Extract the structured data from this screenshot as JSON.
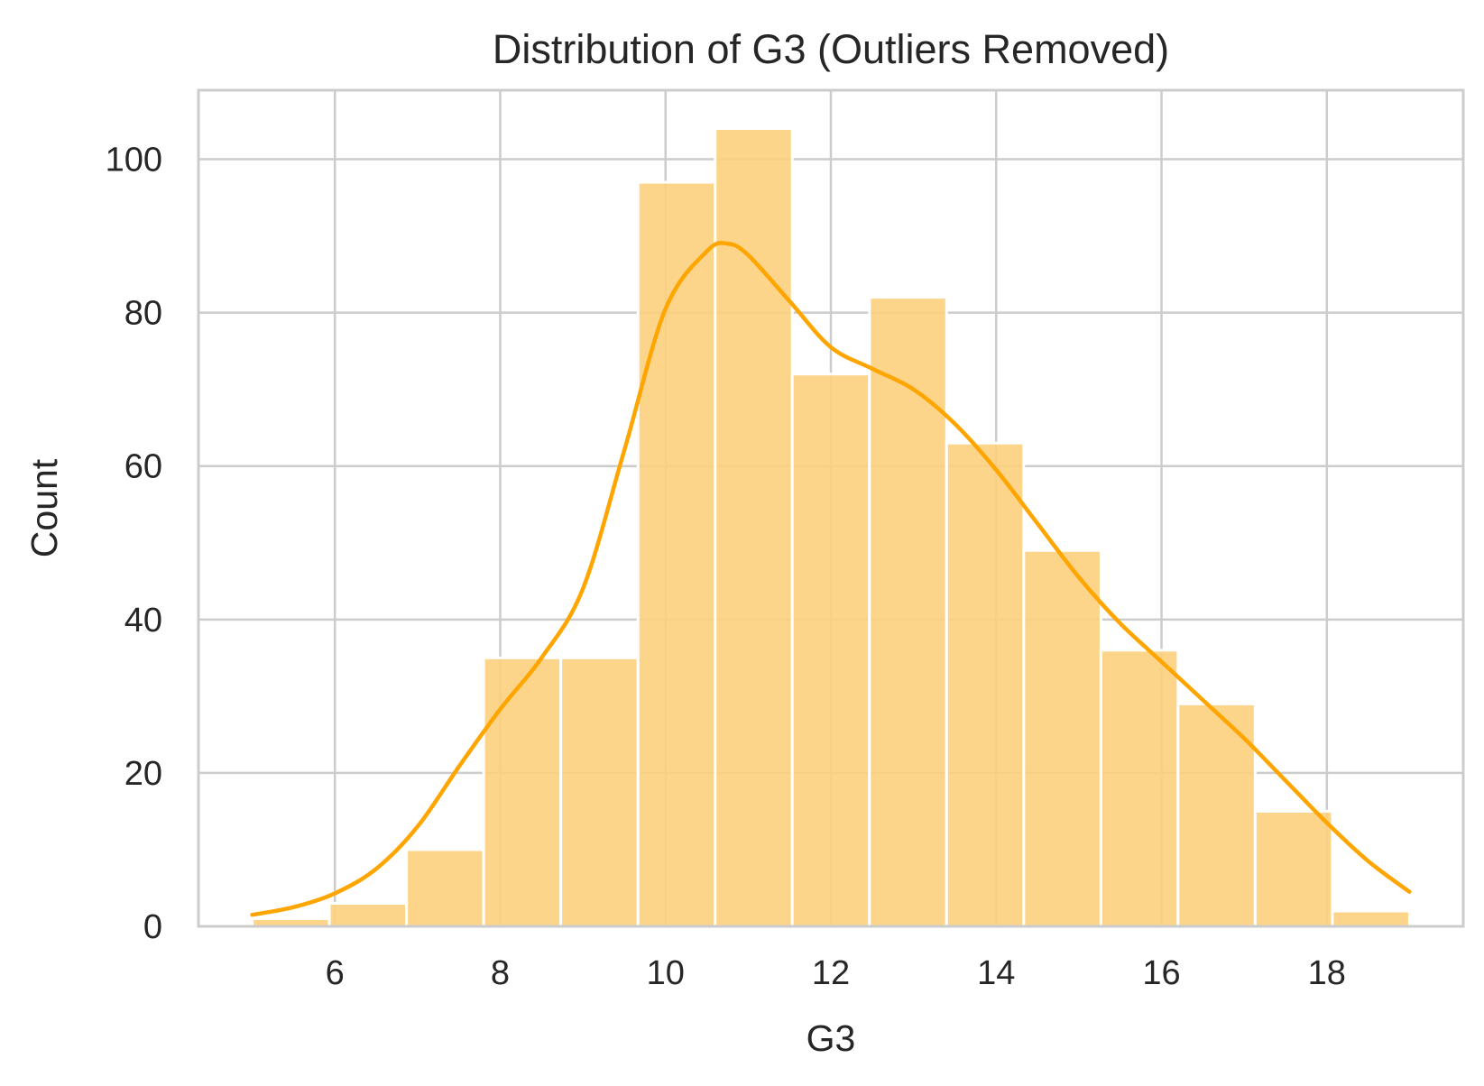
{
  "chart_data": {
    "type": "bar",
    "subtype": "histogram_with_kde",
    "title": "Distribution of G3 (Outliers Removed)",
    "xlabel": "G3",
    "ylabel": "Count",
    "xlim": [
      4.35,
      19.65
    ],
    "ylim": [
      0,
      109
    ],
    "xticks": [
      6,
      8,
      10,
      12,
      14,
      16,
      18
    ],
    "yticks": [
      0,
      20,
      40,
      60,
      80,
      100
    ],
    "grid": true,
    "bin_width": 0.9333,
    "bins": [
      {
        "x0": 5.0,
        "x1": 5.933,
        "count": 1
      },
      {
        "x0": 5.933,
        "x1": 6.867,
        "count": 3
      },
      {
        "x0": 6.867,
        "x1": 7.8,
        "count": 10
      },
      {
        "x0": 7.8,
        "x1": 8.733,
        "count": 35
      },
      {
        "x0": 8.733,
        "x1": 9.667,
        "count": 35
      },
      {
        "x0": 9.667,
        "x1": 10.6,
        "count": 97
      },
      {
        "x0": 10.6,
        "x1": 11.533,
        "count": 104
      },
      {
        "x0": 11.533,
        "x1": 12.467,
        "count": 72
      },
      {
        "x0": 12.467,
        "x1": 13.4,
        "count": 82
      },
      {
        "x0": 13.4,
        "x1": 14.333,
        "count": 63
      },
      {
        "x0": 14.333,
        "x1": 15.267,
        "count": 49
      },
      {
        "x0": 15.267,
        "x1": 16.2,
        "count": 36
      },
      {
        "x0": 16.2,
        "x1": 17.133,
        "count": 29
      },
      {
        "x0": 17.133,
        "x1": 18.067,
        "count": 15
      },
      {
        "x0": 18.067,
        "x1": 19.0,
        "count": 2
      }
    ],
    "kde": {
      "x": [
        5.0,
        5.5,
        6.0,
        6.5,
        7.0,
        7.5,
        8.0,
        8.5,
        9.0,
        9.5,
        10.0,
        10.5,
        10.75,
        11.0,
        11.5,
        12.0,
        12.5,
        13.0,
        13.5,
        14.0,
        14.5,
        15.0,
        15.5,
        16.0,
        16.5,
        17.0,
        17.5,
        18.0,
        18.5,
        19.0
      ],
      "y": [
        1.5,
        2.5,
        4.3,
        7.5,
        13.0,
        20.8,
        28.3,
        35.0,
        44.0,
        62.0,
        80.5,
        88.0,
        89.0,
        87.5,
        81.5,
        75.5,
        72.7,
        70.0,
        65.5,
        59.5,
        52.5,
        45.5,
        39.5,
        34.5,
        29.5,
        24.5,
        19.0,
        13.5,
        8.5,
        4.5
      ]
    },
    "colors": {
      "bar_fill": "#fdd07d",
      "bar_edge": "#ffffff",
      "kde_line": "#ffa500",
      "grid": "#cccccc",
      "spine": "#cccccc"
    }
  }
}
